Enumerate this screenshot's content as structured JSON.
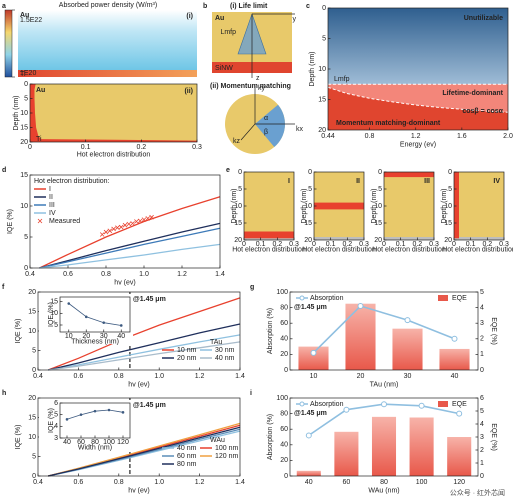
{
  "watermark": "公众号 · 红外芯闻",
  "chart_data": [
    {
      "type": "heatmap",
      "panel": "a",
      "title": "Absorbed power density (W/m³)",
      "colorbar_ticks": [
        {
          "value": 1.5e+22,
          "label": "1.5E22"
        },
        {
          "value": 1e+20,
          "label": "1E20"
        }
      ],
      "colors": [
        "#c0392b",
        "#f5d76e",
        "#8fd3e8",
        "#1f4e9c"
      ],
      "top": {
        "label": "(i)",
        "layers": [
          "Au",
          "Ti"
        ]
      },
      "bottom": {
        "label": "(ii)",
        "layers": [
          "Au",
          "Ti"
        ],
        "xlabel": "Hot electron distribution",
        "ylabel": "Depth (nm)",
        "xlim": [
          0,
          0.3
        ],
        "xticks": [
          0,
          0.1,
          0.2,
          0.3
        ],
        "ylim": [
          0,
          20
        ],
        "yticks": [
          0,
          5,
          10,
          15,
          20
        ],
        "y_inverted": true,
        "color": "#e8412e",
        "profile": {
          "depth": [
            0,
            2,
            5,
            10,
            15,
            18,
            19,
            19.5,
            20
          ],
          "values": [
            0.01,
            0.008,
            0.008,
            0.009,
            0.011,
            0.015,
            0.02,
            0.3,
            0.3
          ]
        }
      }
    },
    {
      "type": "diagram",
      "panel": "b",
      "parts": [
        {
          "title": "(i) Life limit",
          "labels": [
            "Au",
            "SiNW",
            "Lmfp",
            "y",
            "z"
          ]
        },
        {
          "title": "(ii) Momentum matching",
          "labels": [
            "kx",
            "ky",
            "kz",
            "α",
            "β"
          ]
        }
      ]
    },
    {
      "type": "region",
      "panel": "c",
      "xlabel": "Energy (ev)",
      "ylabel": "Depth (nm)",
      "xlim": [
        0.44,
        2
      ],
      "xticks": [
        0.44,
        0.8,
        1.2,
        1.6,
        {
          "value": 2,
          "label": "2.0"
        }
      ],
      "ylim": [
        0,
        20
      ],
      "yticks": [
        0,
        5,
        10,
        15,
        20
      ],
      "y_inverted": true,
      "lmfp": {
        "label": "Lmfp",
        "depth": 12.5
      },
      "boundary": {
        "label": "cosβ = cosα",
        "x": [
          0.44,
          0.6,
          0.8,
          1.0,
          1.2,
          1.4,
          1.6,
          1.8,
          2.0
        ],
        "depth": [
          13,
          14,
          14.8,
          15.4,
          15.9,
          16.3,
          16.6,
          16.9,
          17.1
        ]
      },
      "regions": [
        "Unutilizable",
        "Lifetime-dominant",
        "Momentum matching-dominant"
      ],
      "colors": [
        "#2f5f8f",
        "#f3867a",
        "#e0452f"
      ]
    },
    {
      "type": "line",
      "panel": "d",
      "xlabel": "hv (ev)",
      "ylabel": "IQE (%)",
      "legend_title": "Hot electron distribution:",
      "legend": "upper left",
      "legend_columns": 1,
      "xlim": [
        0.4,
        1.4
      ],
      "xticks": [
        0.4,
        0.6,
        0.8,
        {
          "value": 1,
          "label": "1.0"
        },
        1.2,
        1.4
      ],
      "ylim": [
        0,
        15
      ],
      "yticks": [
        0,
        5,
        10,
        15
      ],
      "x": [
        0.45,
        0.6,
        0.8,
        1.0,
        1.2,
        1.4
      ],
      "series": [
        {
          "name": "I",
          "color": "#e8412e",
          "values": [
            0,
            2.2,
            5.0,
            7.5,
            9.6,
            11.5
          ]
        },
        {
          "name": "II",
          "color": "#1f2f5c",
          "values": [
            0,
            1.2,
            2.8,
            4.3,
            5.8,
            7.2
          ]
        },
        {
          "name": "III",
          "color": "#3d7ab8",
          "values": [
            0,
            1.0,
            2.4,
            3.8,
            5.1,
            6.4
          ]
        },
        {
          "name": "IV",
          "color": "#8fc1e0",
          "values": [
            0,
            0.5,
            1.3,
            2.1,
            3.0,
            3.8
          ]
        },
        {
          "name": "Measured",
          "color": "#e8412e",
          "marker": "x",
          "x": [
            0.78,
            0.8,
            0.82,
            0.84,
            0.86,
            0.88,
            0.9,
            0.92,
            0.94,
            0.96,
            0.98,
            1.0,
            1.02,
            1.04
          ],
          "values": [
            5.4,
            5.8,
            6.0,
            6.3,
            6.5,
            6.6,
            6.9,
            7.1,
            7.2,
            7.5,
            7.6,
            7.8,
            8.0,
            8.2
          ]
        }
      ]
    },
    {
      "type": "profiles",
      "panel": "e",
      "xlabel": "Hot electron distribution",
      "ylabel": "Depth (nm)",
      "xlim": [
        0,
        0.3
      ],
      "xticks": [
        0,
        0.1,
        0.2,
        0.3
      ],
      "ylim": [
        0,
        20
      ],
      "yticks": [
        0,
        5,
        10,
        15,
        20
      ],
      "y_inverted": true,
      "color": "#e8412e",
      "panels": [
        {
          "label": "I",
          "depth": [
            17.5,
            19.5
          ],
          "distribution": [
            0,
            0.3
          ]
        },
        {
          "label": "II",
          "depth": [
            9,
            11
          ],
          "distribution": [
            0,
            0.3
          ]
        },
        {
          "label": "III",
          "depth": [
            0,
            1.5
          ],
          "distribution": [
            0,
            0.3
          ]
        },
        {
          "label": "IV",
          "depth": [
            0,
            19.5
          ],
          "distribution": [
            0,
            0.03
          ]
        }
      ]
    },
    {
      "type": "line",
      "panel": "f",
      "xlabel": "hv (ev)",
      "ylabel": "IQE (%)",
      "legend_title": "TAu",
      "legend": "lower right",
      "legend_columns": 2,
      "xlim": [
        0.4,
        1.4
      ],
      "xticks": [
        0.4,
        0.6,
        0.8,
        {
          "value": 1,
          "label": "1.0"
        },
        1.2,
        1.4
      ],
      "ylim": [
        0,
        20
      ],
      "yticks": [
        0,
        5,
        10,
        15,
        20
      ],
      "annotation": {
        "text": "@1.45 μm",
        "x": 0.855
      },
      "x": [
        0.45,
        0.6,
        0.8,
        1.0,
        1.2,
        1.4
      ],
      "series": [
        {
          "name": "10 nm",
          "color": "#e8412e",
          "values": [
            0,
            3,
            7.5,
            11.5,
            15,
            18.5
          ]
        },
        {
          "name": "30 nm",
          "color": "#8fc1e0",
          "values": [
            0,
            1.3,
            3.3,
            5.3,
            7.2,
            9
          ]
        },
        {
          "name": "20 nm",
          "color": "#1f2f5c",
          "values": [
            0,
            1.8,
            4.5,
            7,
            9.5,
            11.8
          ]
        },
        {
          "name": "40 nm",
          "color": "#a9bccb",
          "values": [
            0,
            1,
            2.6,
            4.2,
            5.7,
            7.2
          ]
        }
      ],
      "inset": {
        "xlabel": "Thickness (nm)",
        "ylabel": "IQE (%)",
        "xlim": [
          5,
          45
        ],
        "xticks": [
          10,
          20,
          30,
          40
        ],
        "ylim": [
          2,
          17
        ],
        "yticks": [
          5,
          10,
          15
        ],
        "x": [
          10,
          20,
          30,
          40
        ],
        "values": [
          14.2,
          8.5,
          6,
          4.8
        ],
        "color": "#3d5a80"
      }
    },
    {
      "type": "bar_line",
      "panel": "g",
      "xlabel": "TAu (nm)",
      "ylabel": "Absorption (%)",
      "y2label": "EQE (%)",
      "categories": [
        "10",
        "20",
        "30",
        "40"
      ],
      "ylim": [
        0,
        100
      ],
      "yticks": [
        0,
        20,
        40,
        60,
        80,
        100
      ],
      "y2lim": [
        0,
        5
      ],
      "y2ticks": [
        0,
        1,
        2,
        3,
        4,
        5
      ],
      "annotation": {
        "text": "@1.45 μm"
      },
      "series": [
        {
          "name": "Absorption",
          "color": "#8fbfe0",
          "values": [
            22,
            82,
            64,
            40
          ]
        },
        {
          "name": "EQE",
          "color": "#e8584a",
          "axis": "y2",
          "values": [
            1.5,
            4.25,
            2.65,
            1.35
          ]
        }
      ]
    },
    {
      "type": "line",
      "panel": "h",
      "xlabel": "hv (ev)",
      "ylabel": "IQE (%)",
      "legend_title": "WAu",
      "legend": "lower right",
      "legend_columns": 2,
      "xlim": [
        0.4,
        1.4
      ],
      "xticks": [
        0.4,
        0.6,
        0.8,
        {
          "value": 1,
          "label": "1.0"
        },
        1.2,
        1.4
      ],
      "ylim": [
        0,
        20
      ],
      "yticks": [
        0,
        5,
        10,
        15,
        20
      ],
      "annotation": {
        "text": "@1.45 μm",
        "x": 0.855
      },
      "x": [
        0.45,
        0.6,
        0.8,
        1.0,
        1.2,
        1.4
      ],
      "series": [
        {
          "name": "40 nm",
          "color": "#8fc1e0",
          "values": [
            0,
            1.6,
            4,
            6.5,
            9,
            11.5
          ]
        },
        {
          "name": "100 nm",
          "color": "#e8412e",
          "values": [
            0,
            1.9,
            4.6,
            7.4,
            10.2,
            13
          ]
        },
        {
          "name": "60 nm",
          "color": "#5b8db8",
          "values": [
            0,
            1.7,
            4.2,
            6.8,
            9.4,
            12
          ]
        },
        {
          "name": "120 nm",
          "color": "#f0a040",
          "values": [
            0,
            2,
            4.8,
            7.7,
            10.6,
            13.5
          ]
        },
        {
          "name": "80 nm",
          "color": "#1f2f5c",
          "values": [
            0,
            1.8,
            4.4,
            7.1,
            9.8,
            12.5
          ]
        }
      ],
      "inset": {
        "xlabel": "Width (nm)",
        "ylabel": "IQE (%)",
        "xlim": [
          30,
          130
        ],
        "xticks": [
          40,
          60,
          80,
          100,
          120
        ],
        "ylim": [
          3,
          6
        ],
        "yticks": [
          3,
          4,
          5,
          6
        ],
        "x": [
          40,
          60,
          80,
          100,
          120
        ],
        "values": [
          4.6,
          5.0,
          5.3,
          5.4,
          5.2
        ],
        "color": "#3d5a80"
      }
    },
    {
      "type": "bar_line",
      "panel": "i",
      "xlabel": "WAu (nm)",
      "ylabel": "Absorption (%)",
      "y2label": "EQE (%)",
      "categories": [
        "40",
        "60",
        "80",
        "100",
        "120"
      ],
      "ylim": [
        0,
        100
      ],
      "yticks": [
        0,
        20,
        40,
        60,
        80,
        100
      ],
      "y2lim": [
        0,
        6
      ],
      "y2ticks": [
        0,
        1,
        2,
        3,
        4,
        5,
        6
      ],
      "annotation": {
        "text": "@1.45 μm"
      },
      "series": [
        {
          "name": "Absorption",
          "color": "#8fbfe0",
          "values": [
            52,
            85,
            92,
            90,
            80
          ]
        },
        {
          "name": "EQE",
          "color": "#e8584a",
          "axis": "y2",
          "values": [
            0.4,
            3.4,
            4.55,
            4.5,
            3.0
          ]
        }
      ]
    }
  ]
}
